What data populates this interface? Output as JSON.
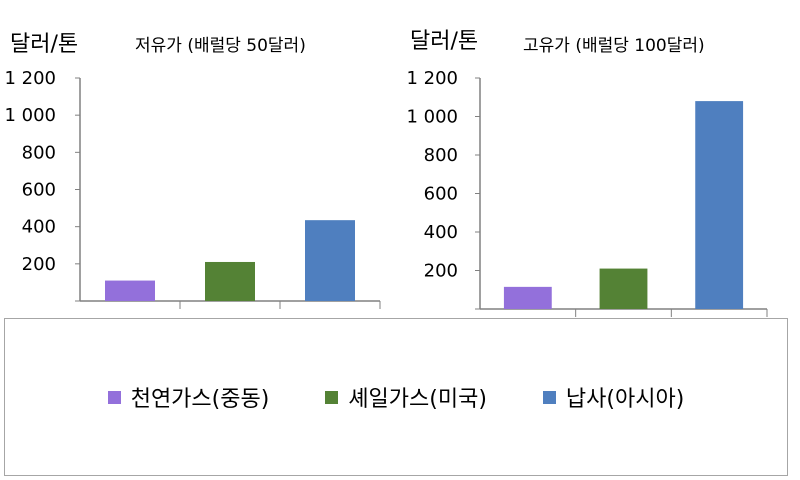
{
  "chart_data": [
    {
      "type": "bar",
      "unit": "달러/톤",
      "title": "저유가 (배럴당 50달러)",
      "categories": [
        "천연가스(중동)",
        "셰일가스(미국)",
        "납사(아시아)"
      ],
      "values": [
        110,
        210,
        435
      ],
      "ylim": [
        0,
        1200
      ],
      "yticks": [
        "",
        "200",
        "400",
        "600",
        "800",
        "1 000",
        "1 200"
      ],
      "grid": false
    },
    {
      "type": "bar",
      "unit": "달러/톤",
      "title": "고유가 (배럴당 100달러)",
      "categories": [
        "천연가스(중동)",
        "셰일가스(미국)",
        "납사(아시아)"
      ],
      "values": [
        115,
        210,
        1080
      ],
      "ylim": [
        0,
        1200
      ],
      "yticks": [
        "",
        "200",
        "400",
        "600",
        "800",
        "1 000",
        "1 200"
      ],
      "grid": false
    }
  ],
  "legend": [
    {
      "label": "천연가스(중동)",
      "color": "#9370db"
    },
    {
      "label": "셰일가스(미국)",
      "color": "#548235"
    },
    {
      "label": "납사(아시아)",
      "color": "#4f7fbf"
    }
  ]
}
